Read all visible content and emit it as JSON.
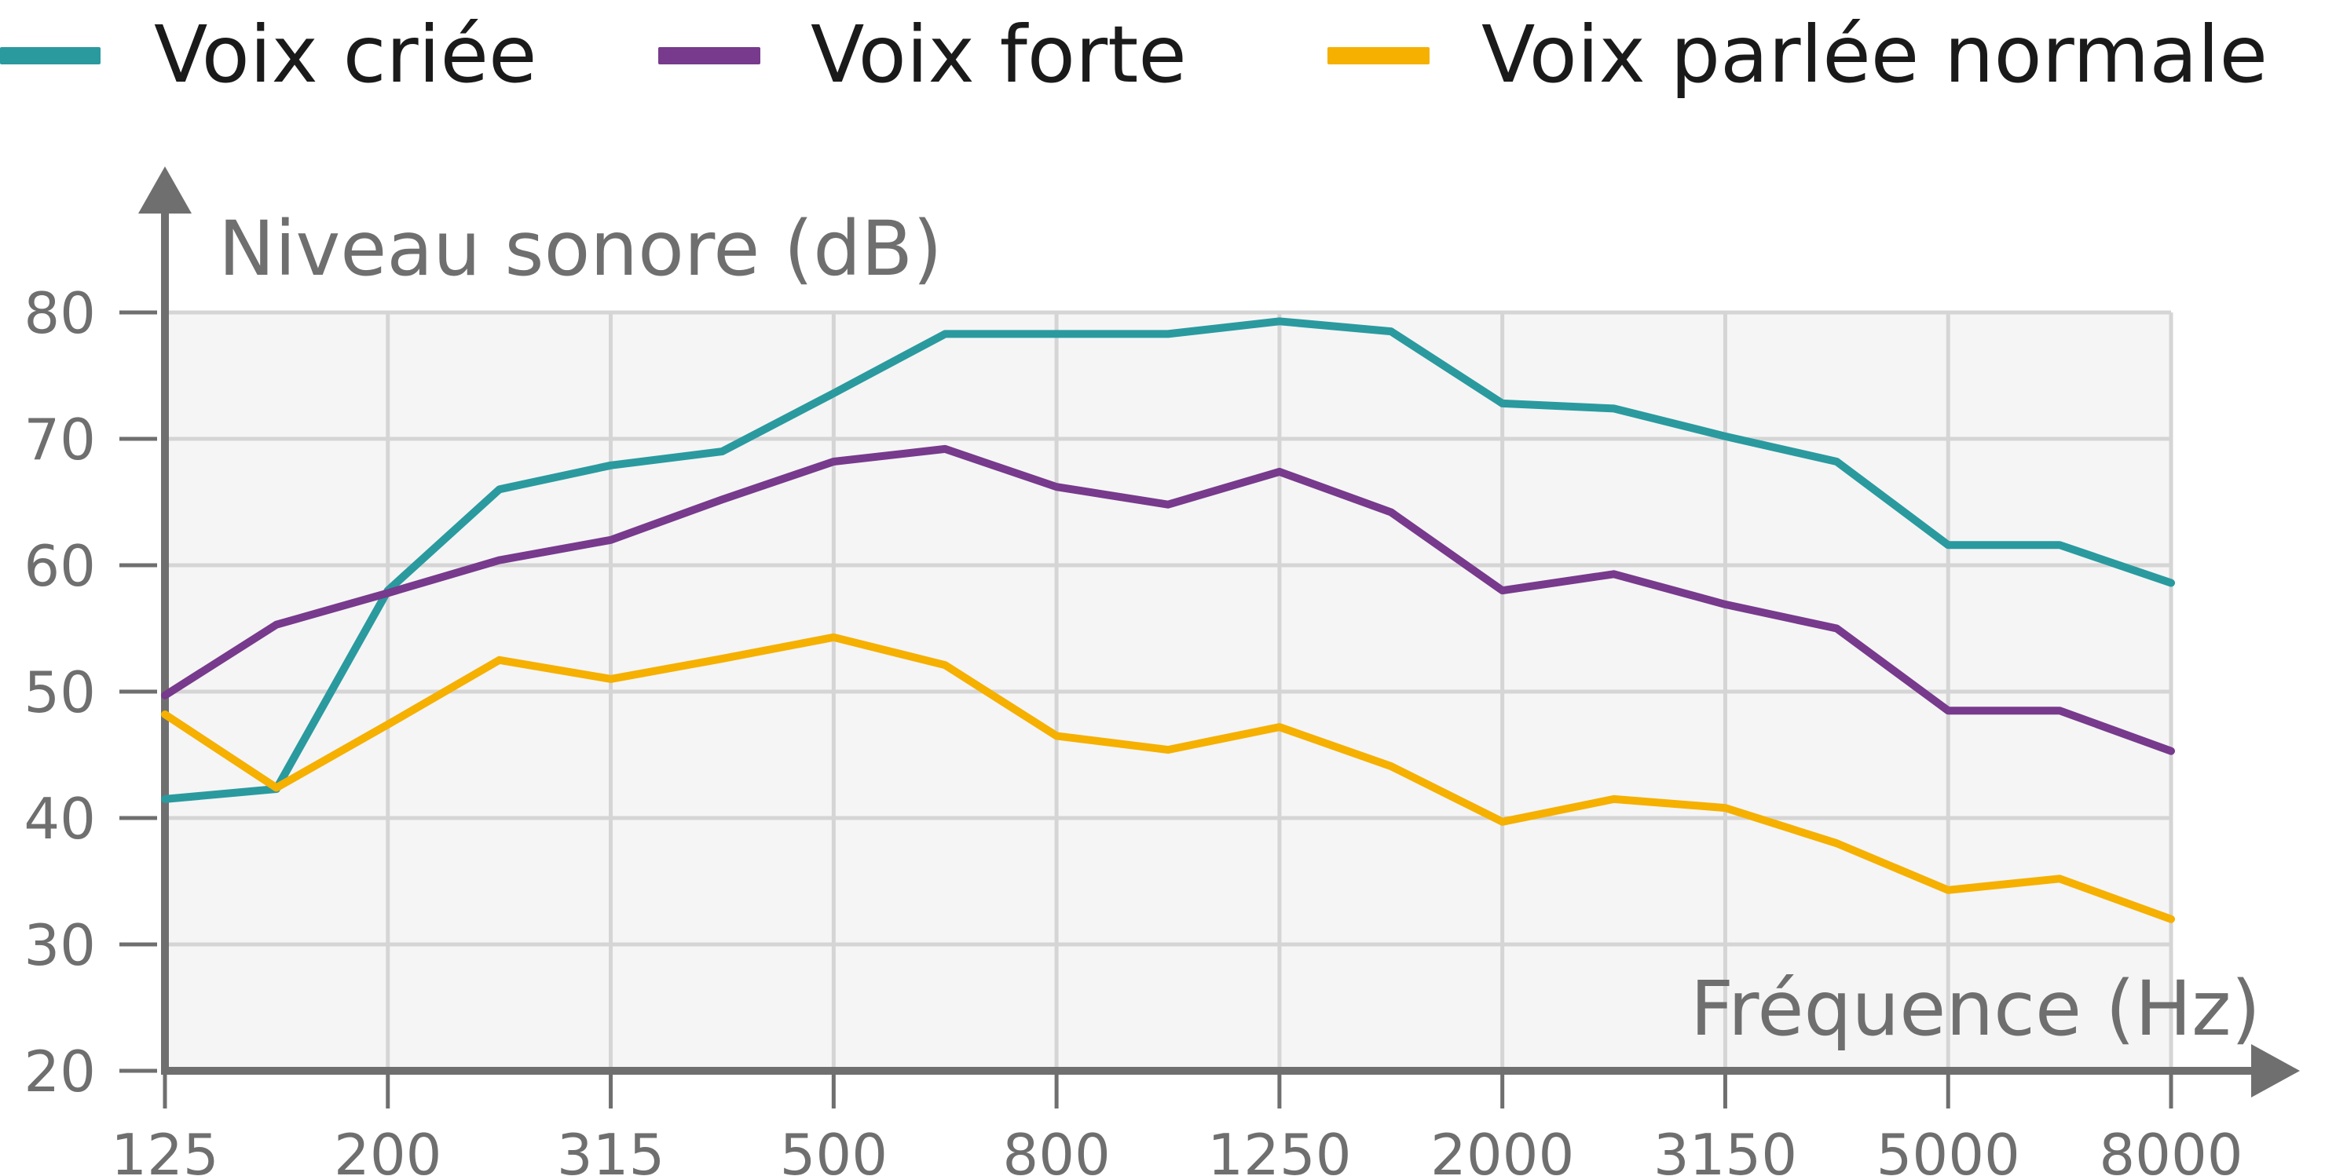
{
  "colors": {
    "voix_criee": "#2a9a9f",
    "voix_forte": "#773a8c",
    "voix_parlee": "#f5b000",
    "axis": "#6f6f6f",
    "grid": "#d5d5d5",
    "plot_bg": "#f5f5f5"
  },
  "chart_data": {
    "type": "line",
    "xlabel": "Fréquence (Hz)",
    "ylabel": "Niveau sonore (dB)",
    "ylim": [
      20,
      80
    ],
    "y_ticks": [
      "20",
      "30",
      "40",
      "50",
      "60",
      "70",
      "80"
    ],
    "x_tick_labels": [
      "125",
      "200",
      "315",
      "500",
      "800",
      "1250",
      "2000",
      "3150",
      "5000",
      "8000"
    ],
    "x": [
      125,
      160,
      200,
      250,
      315,
      400,
      500,
      630,
      800,
      1000,
      1250,
      1600,
      2000,
      2500,
      3150,
      4000,
      5000,
      6300,
      8000
    ],
    "grid": true,
    "legend_position": "top",
    "series": [
      {
        "name": "Voix criée",
        "color_key": "voix_criee",
        "values": [
          41.5,
          42.3,
          58,
          66,
          67.9,
          69,
          73.6,
          78.3,
          78.3,
          78.3,
          79.3,
          78.5,
          72.8,
          72.4,
          70.2,
          68.2,
          61.6,
          61.6,
          58.6
        ]
      },
      {
        "name": "Voix forte",
        "color_key": "voix_forte",
        "values": [
          49.7,
          55.3,
          57.8,
          60.4,
          62,
          65.2,
          68.2,
          69.2,
          66.2,
          64.8,
          67.4,
          64.2,
          58,
          59.3,
          56.9,
          55,
          48.5,
          48.5,
          45.3
        ]
      },
      {
        "name": "Voix parlée normale",
        "color_key": "voix_parlee",
        "values": [
          48.2,
          42.4,
          47.4,
          52.5,
          51,
          52.6,
          54.3,
          52.1,
          46.5,
          45.4,
          47.2,
          44.1,
          39.7,
          41.5,
          40.8,
          38,
          34.3,
          35.2,
          32
        ]
      }
    ]
  }
}
